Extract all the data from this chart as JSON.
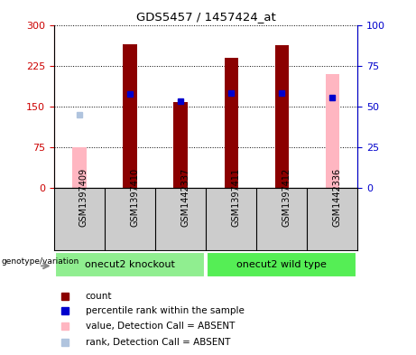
{
  "title": "GDS5457 / 1457424_at",
  "samples": [
    "GSM1397409",
    "GSM1397410",
    "GSM1442337",
    "GSM1397411",
    "GSM1397412",
    "GSM1442336"
  ],
  "count_values": [
    null,
    265,
    158,
    240,
    262,
    null
  ],
  "count_color": "#8B0000",
  "rank_values": [
    null,
    57.5,
    53.5,
    58.5,
    58.5,
    55.5
  ],
  "rank_color": "#0000CD",
  "absent_value_values": [
    75,
    null,
    null,
    null,
    null,
    210
  ],
  "absent_value_color": "#FFB6C1",
  "absent_rank_values": [
    45,
    null,
    null,
    null,
    null,
    null
  ],
  "absent_rank_color": "#B0C4DE",
  "ylim_left": [
    0,
    300
  ],
  "ylim_right": [
    0,
    100
  ],
  "yticks_left": [
    0,
    75,
    150,
    225,
    300
  ],
  "yticks_right": [
    0,
    25,
    50,
    75,
    100
  ],
  "ylabel_left_color": "#CC0000",
  "ylabel_right_color": "#0000CC",
  "bar_width": 0.5,
  "background_color": "#FFFFFF",
  "grid_color": "#000000",
  "group_spans": [
    [
      0,
      2,
      "onecut2 knockout",
      "#90EE90"
    ],
    [
      3,
      5,
      "onecut2 wild type",
      "#55EE55"
    ]
  ],
  "legend_items": [
    {
      "label": "count",
      "color": "#8B0000"
    },
    {
      "label": "percentile rank within the sample",
      "color": "#0000CD"
    },
    {
      "label": "value, Detection Call = ABSENT",
      "color": "#FFB6C1"
    },
    {
      "label": "rank, Detection Call = ABSENT",
      "color": "#B0C4DE"
    }
  ],
  "sample_area_color": "#CCCCCC",
  "genotype_label": "genotype/variation"
}
